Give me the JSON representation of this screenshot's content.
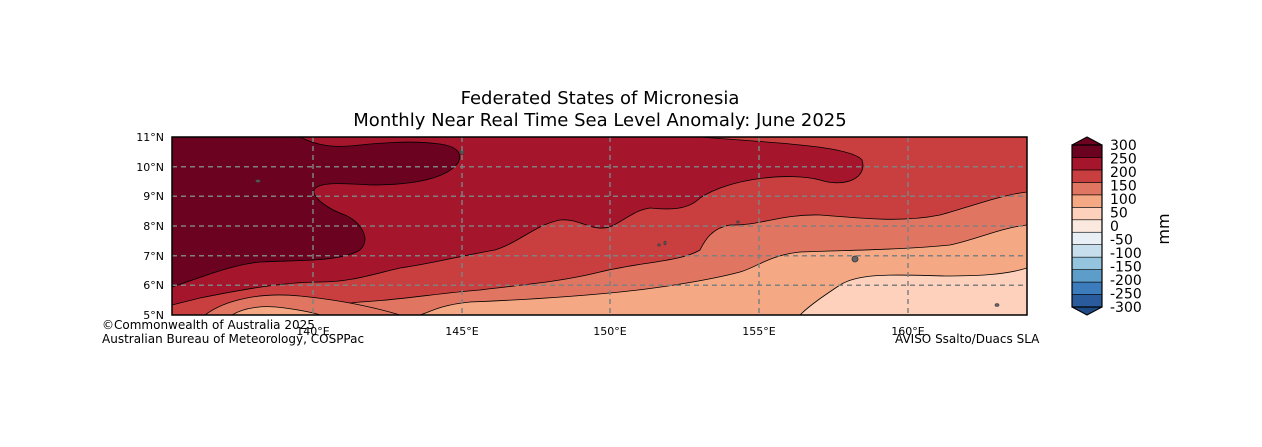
{
  "title": {
    "line1": "Federated States of Micronesia",
    "line2": "Monthly Near Real Time Sea Level Anomaly: June 2025"
  },
  "map": {
    "lat_ticks": [
      "11°N",
      "10°N",
      "9°N",
      "8°N",
      "7°N",
      "6°N",
      "5°N"
    ],
    "lon_ticks": [
      "140°E",
      "145°E",
      "150°E",
      "155°E",
      "160°E"
    ],
    "lat_range": [
      5,
      11
    ],
    "lon_range": [
      135.2,
      164
    ],
    "grid": true
  },
  "colorbar": {
    "unit_label": "mm",
    "tick_labels": [
      "300",
      "250",
      "200",
      "150",
      "100",
      "50",
      "0",
      "-50",
      "-100",
      "-150",
      "-200",
      "-250",
      "-300"
    ],
    "levels": [
      {
        "range": [
          -300,
          -250
        ],
        "color": "#2a5b9c"
      },
      {
        "range": [
          -250,
          -200
        ],
        "color": "#3c7bbc"
      },
      {
        "range": [
          -200,
          -150
        ],
        "color": "#5d9dc9"
      },
      {
        "range": [
          -150,
          -100
        ],
        "color": "#94c4de"
      },
      {
        "range": [
          -100,
          -50
        ],
        "color": "#c7dfed"
      },
      {
        "range": [
          -50,
          0
        ],
        "color": "#e8f0f6"
      },
      {
        "range": [
          0,
          50
        ],
        "color": "#fbe8df"
      },
      {
        "range": [
          50,
          100
        ],
        "color": "#fdd1bb"
      },
      {
        "range": [
          100,
          150
        ],
        "color": "#f4a883"
      },
      {
        "range": [
          150,
          200
        ],
        "color": "#e07561"
      },
      {
        "range": [
          200,
          250
        ],
        "color": "#c93e3e"
      },
      {
        "range": [
          250,
          300
        ],
        "color": "#a5152c"
      },
      {
        "range": [
          300,
          350
        ],
        "color": "#6a0220"
      }
    ],
    "over_color": "#6a0220",
    "under_color": "#1f4a86"
  },
  "credits": {
    "copyright": "©Commonwealth of Australia 2025",
    "agency": "Australian Bureau of Meteorology, COSPPac",
    "source": "AVISO Ssalto/Duacs SLA"
  }
}
